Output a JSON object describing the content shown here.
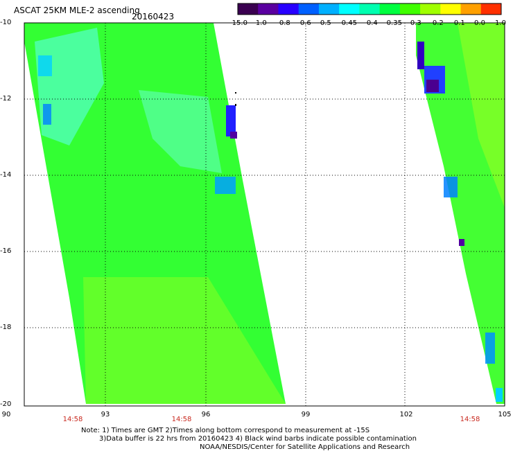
{
  "header": {
    "title": "ASCAT 25KM MLE-2 ascending",
    "date": "20160423"
  },
  "colorbar": {
    "labels": [
      "-15.0",
      "-1.0",
      "-0.8",
      "-0.6",
      "-0.5",
      "-0.45",
      "-0.4",
      "-0.35",
      "-0.3",
      "-0.2",
      "-0.1",
      "0.0",
      "1.0"
    ],
    "colors": [
      "#3a0050",
      "#5a00a0",
      "#2800ff",
      "#0060ff",
      "#00b0ff",
      "#00ffff",
      "#00ffb0",
      "#00ff40",
      "#40ff00",
      "#a0ff00",
      "#ffff00",
      "#ffa000",
      "#ff3000"
    ]
  },
  "map": {
    "y_ticks": [
      "-10",
      "-12",
      "-14",
      "-16",
      "-18",
      "-20"
    ],
    "x_ticks": [
      "90",
      "93",
      "96",
      "99",
      "102",
      "105"
    ],
    "lat_range": [
      -20,
      -10
    ],
    "lon_range": [
      90,
      105
    ],
    "swath_times": [
      "14:58",
      "14:58",
      "14:58"
    ],
    "land_color": "#ffffff",
    "swath_base_color": "#33ff33"
  },
  "notes": {
    "line1": "Note: 1) Times are GMT 2)Times along bottom correspond to measurement at -15S",
    "line2": "3)Data buffer is 22 hrs from 20160423 4) Black wind barbs indicate possible contamination",
    "line3": "NOAA/NESDIS/Center for Satellite Applications and Research"
  }
}
